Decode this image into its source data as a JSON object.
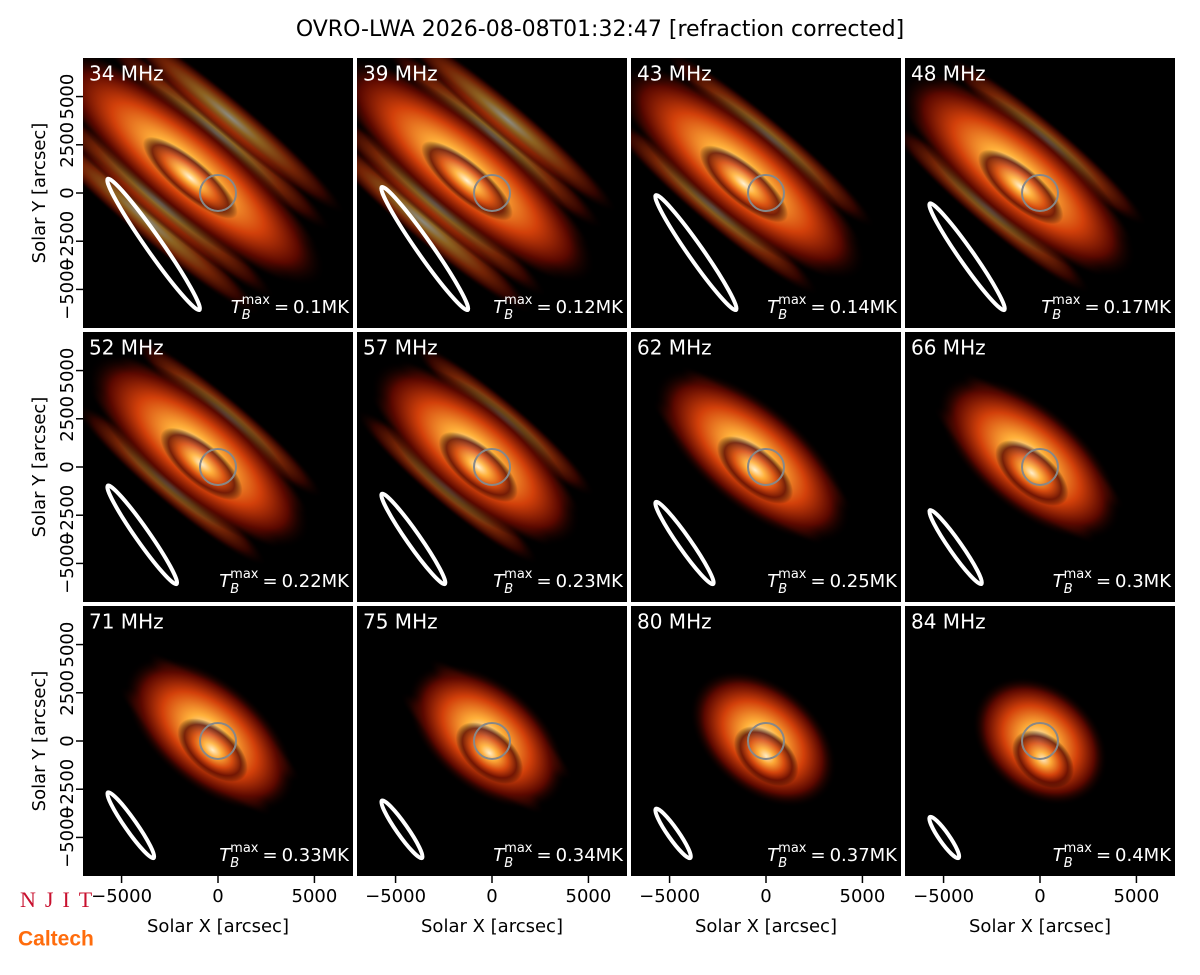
{
  "chart_data": {
    "type": "image-grid",
    "title": "OVRO-LWA 2026-08-08T01:32:47 [refraction corrected]",
    "xlabel": "Solar X [arcsec]",
    "ylabel": "Solar Y [arcsec]",
    "xlim": [
      -7000,
      7000
    ],
    "ylim": [
      -7000,
      7000
    ],
    "xticks": [
      {
        "value": -5000,
        "label": "−5000"
      },
      0,
      5000
    ],
    "yticks": [
      {
        "value": -5000,
        "label": "−5000"
      },
      {
        "value": -2500,
        "label": "−2500"
      },
      0,
      2500,
      5000
    ],
    "tmax_symbol": {
      "base": "T",
      "sub": "B",
      "sup": "max",
      "eq": "="
    },
    "panels": [
      {
        "title": "34 MHz",
        "tmax_label": "0.1MK"
      },
      {
        "title": "39 MHz",
        "tmax_label": "0.12MK"
      },
      {
        "title": "43 MHz",
        "tmax_label": "0.14MK"
      },
      {
        "title": "48 MHz",
        "tmax_label": "0.17MK"
      },
      {
        "title": "52 MHz",
        "tmax_label": "0.22MK"
      },
      {
        "title": "57 MHz",
        "tmax_label": "0.23MK"
      },
      {
        "title": "62 MHz",
        "tmax_label": "0.25MK"
      },
      {
        "title": "66 MHz",
        "tmax_label": "0.3MK"
      },
      {
        "title": "71 MHz",
        "tmax_label": "0.33MK"
      },
      {
        "title": "75 MHz",
        "tmax_label": "0.34MK"
      },
      {
        "title": "80 MHz",
        "tmax_label": "0.37MK"
      },
      {
        "title": "84 MHz",
        "tmax_label": "0.4MK"
      }
    ]
  },
  "logos": [
    "NJIT",
    "Caltech"
  ]
}
